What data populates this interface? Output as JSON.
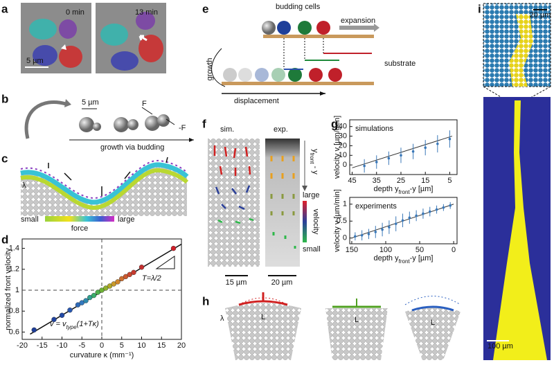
{
  "panels": {
    "labels": [
      "a",
      "b",
      "c",
      "d",
      "e",
      "f",
      "g",
      "h",
      "i"
    ],
    "a": {
      "left_time": "0 min",
      "right_time": "13 min",
      "scale_bar": "5 µm"
    },
    "b": {
      "scale_bar": "5 µm",
      "force": "F",
      "counter_force": "-F",
      "caption": "growth via budding"
    },
    "c": {
      "wavelength": "λ",
      "colorbar_low": "small",
      "colorbar_title": "force",
      "colorbar_high": "large"
    },
    "e": {
      "budding": "budding cells",
      "expansion": "expansion",
      "growth": "growth",
      "substrate": "substrate",
      "displacement": "displacement"
    },
    "f": {
      "sim": "sim.",
      "exp": "exp.",
      "depth": [
        "y",
        "front",
        " - y"
      ],
      "high": "large",
      "quantity": "velocity",
      "low": "small",
      "sim_scale": "15 µm",
      "exp_scale": "20 µm"
    },
    "h": {
      "wavelength": "λ",
      "length": [
        "L",
        "L",
        "L"
      ]
    },
    "i": {
      "inset_scale": "20 µm",
      "scale_bar": "100 µm"
    }
  },
  "chart_data": [
    {
      "type": "scatter",
      "xlabel": "curvature κ (mm⁻¹)",
      "ylabel": "normalized front velocity",
      "xlim": [
        -20,
        20
      ],
      "ylim": [
        0.53,
        1.49
      ],
      "xticks": [
        -20,
        -15,
        -10,
        -5,
        0,
        5,
        10,
        15,
        20
      ],
      "yticks": [
        0.6,
        0.8,
        1,
        1.2,
        1.4
      ],
      "x": [
        -17,
        -12,
        -10,
        -8,
        -6,
        -5,
        -4,
        -3,
        -2,
        -1,
        0,
        1,
        2,
        3,
        4,
        5,
        6,
        7,
        8,
        10,
        18
      ],
      "values": [
        0.62,
        0.72,
        0.76,
        0.81,
        0.86,
        0.88,
        0.9,
        0.93,
        0.95,
        0.98,
        1,
        1.02,
        1.04,
        1.06,
        1.08,
        1.11,
        1.13,
        1.15,
        1.17,
        1.22,
        1.4
      ],
      "colors": [
        "#1f3f99",
        "#21449f",
        "#234aa6",
        "#2a58b0",
        "#2f6ab8",
        "#3479be",
        "#2f8aae",
        "#2fa08f",
        "#3aae6a",
        "#4fb14a",
        "#6eb236",
        "#90b02c",
        "#b0a82a",
        "#c89a2c",
        "#d0872e",
        "#cf7030",
        "#cc5a30",
        "#c94830",
        "#c63a30",
        "#c43030",
        "#d0202a"
      ],
      "fit": {
        "x": [
          -18,
          20
        ],
        "values": [
          0.58,
          1.44
        ]
      },
      "reference": {
        "x": 0,
        "y": 1
      },
      "annotations": {
        "slope": "T=λ/2",
        "formula": [
          "v = v",
          "type",
          "(1+Tκ)"
        ]
      }
    },
    {
      "type": "errorbar",
      "title": "simulations",
      "xlabel": [
        "depth ",
        "y",
        "front",
        "-y [µm]"
      ],
      "ylabel": "velocity v [µm/gen]",
      "xlim": [
        46,
        2
      ],
      "ylim": [
        -10,
        47
      ],
      "xticks": [
        45,
        35,
        25,
        15,
        5
      ],
      "yticks": [
        0,
        10,
        20,
        30,
        40
      ],
      "x": [
        40,
        35,
        30,
        25,
        20,
        15,
        10,
        5
      ],
      "values": [
        -1,
        3,
        7,
        10,
        14,
        18,
        22,
        27
      ],
      "errors": [
        7,
        7,
        7,
        8,
        8,
        8,
        9,
        9
      ],
      "color": "#3a78b8",
      "fit": {
        "x": [
          45,
          4
        ],
        "values": [
          -3,
          30
        ]
      }
    },
    {
      "type": "errorbar",
      "title": "experiments",
      "xlabel": [
        "depth ",
        "y",
        "front",
        "-y [µm]"
      ],
      "ylabel": "velocity v [µm/min]",
      "xlim": [
        153,
        -5
      ],
      "ylim": [
        -0.17,
        1.2
      ],
      "xticks": [
        150,
        100,
        50,
        0
      ],
      "yticks": [
        0,
        0.5,
        1
      ],
      "x": [
        145,
        135,
        125,
        115,
        105,
        95,
        85,
        75,
        65,
        55,
        45,
        35,
        25,
        15,
        5
      ],
      "values": [
        0.05,
        0.08,
        0.12,
        0.18,
        0.25,
        0.32,
        0.42,
        0.52,
        0.6,
        0.66,
        0.72,
        0.78,
        0.84,
        0.9,
        0.96
      ],
      "errors": [
        0.12,
        0.15,
        0.15,
        0.18,
        0.2,
        0.2,
        0.22,
        0.2,
        0.18,
        0.16,
        0.15,
        0.14,
        0.12,
        0.1,
        0.1
      ],
      "color": "#3a78b8",
      "fit": {
        "x": [
          150,
          0
        ],
        "values": [
          0,
          1
        ]
      }
    }
  ]
}
